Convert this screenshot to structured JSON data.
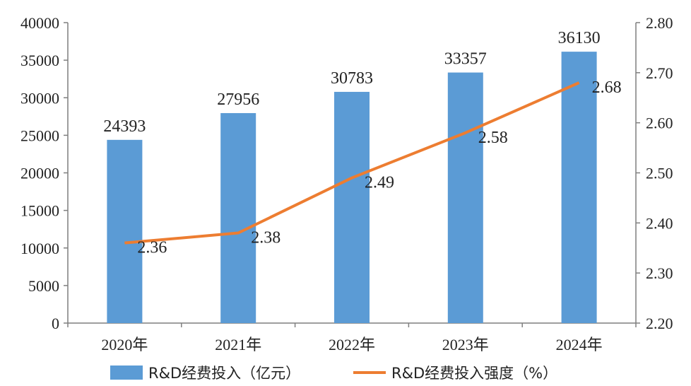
{
  "chart_data": {
    "type": "bar",
    "categories": [
      "2020年",
      "2021年",
      "2022年",
      "2023年",
      "2024年"
    ],
    "series": [
      {
        "name": "R&D经费投入（亿元）",
        "type": "bar",
        "axis": "left",
        "values": [
          24393,
          27956,
          30783,
          33357,
          36130
        ],
        "labels": [
          "24393",
          "27956",
          "30783",
          "33357",
          "36130"
        ]
      },
      {
        "name": "R&D经费投入强度（%）",
        "type": "line",
        "axis": "right",
        "values": [
          2.36,
          2.38,
          2.49,
          2.58,
          2.68
        ],
        "labels": [
          "2.36",
          "2.38",
          "2.49",
          "2.58",
          "2.68"
        ]
      }
    ],
    "y_left": {
      "range": [
        0,
        40000
      ],
      "ticks": [
        "0",
        "5000",
        "10000",
        "15000",
        "20000",
        "25000",
        "30000",
        "35000",
        "40000"
      ]
    },
    "y_right": {
      "range": [
        2.2,
        2.8
      ],
      "ticks": [
        "2.20",
        "2.30",
        "2.40",
        "2.50",
        "2.60",
        "2.70",
        "2.80"
      ]
    },
    "grid": false,
    "legend_position": "bottom",
    "colors": {
      "bar": "#5b9bd5",
      "line": "#ed7d31",
      "axis": "#7f7f7f"
    }
  }
}
